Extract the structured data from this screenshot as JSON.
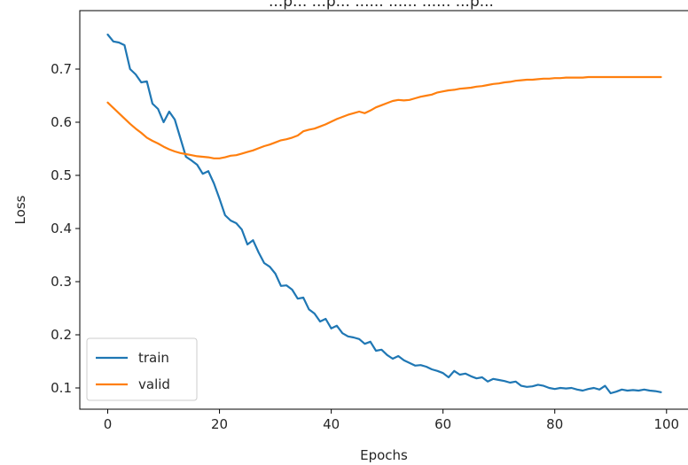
{
  "chart_data": {
    "type": "line",
    "title": "...p... ...p... ...... ...... ...... ...p...",
    "xlabel": "Epochs",
    "ylabel": "Loss",
    "xlim": [
      -5,
      104
    ],
    "ylim": [
      0.06,
      0.81
    ],
    "xticks": [
      0,
      20,
      40,
      60,
      80,
      100
    ],
    "yticks": [
      0.1,
      0.2,
      0.3,
      0.4,
      0.5,
      0.6,
      0.7
    ],
    "grid": false,
    "legend_position": "lower-left",
    "series": [
      {
        "name": "train",
        "color": "#1f77b4",
        "x": [
          0,
          1,
          2,
          3,
          4,
          5,
          6,
          7,
          8,
          9,
          10,
          11,
          12,
          13,
          14,
          15,
          16,
          17,
          18,
          19,
          20,
          21,
          22,
          23,
          24,
          25,
          26,
          27,
          28,
          29,
          30,
          31,
          32,
          33,
          34,
          35,
          36,
          37,
          38,
          39,
          40,
          41,
          42,
          43,
          44,
          45,
          46,
          47,
          48,
          49,
          50,
          51,
          52,
          53,
          54,
          55,
          56,
          57,
          58,
          59,
          60,
          61,
          62,
          63,
          64,
          65,
          66,
          67,
          68,
          69,
          70,
          71,
          72,
          73,
          74,
          75,
          76,
          77,
          78,
          79,
          80,
          81,
          82,
          83,
          84,
          85,
          86,
          87,
          88,
          89,
          90,
          91,
          92,
          93,
          94,
          95,
          96,
          97,
          98,
          99
        ],
        "y": [
          0.765,
          0.752,
          0.75,
          0.745,
          0.7,
          0.69,
          0.675,
          0.677,
          0.635,
          0.625,
          0.6,
          0.62,
          0.605,
          0.57,
          0.535,
          0.528,
          0.52,
          0.503,
          0.508,
          0.485,
          0.456,
          0.425,
          0.415,
          0.41,
          0.398,
          0.37,
          0.378,
          0.355,
          0.335,
          0.328,
          0.315,
          0.292,
          0.293,
          0.285,
          0.268,
          0.27,
          0.248,
          0.24,
          0.225,
          0.23,
          0.212,
          0.217,
          0.203,
          0.197,
          0.195,
          0.192,
          0.183,
          0.187,
          0.17,
          0.172,
          0.162,
          0.155,
          0.16,
          0.152,
          0.147,
          0.142,
          0.143,
          0.14,
          0.135,
          0.132,
          0.128,
          0.12,
          0.132,
          0.125,
          0.127,
          0.122,
          0.118,
          0.12,
          0.112,
          0.117,
          0.115,
          0.113,
          0.11,
          0.112,
          0.104,
          0.102,
          0.103,
          0.106,
          0.104,
          0.1,
          0.098,
          0.1,
          0.099,
          0.1,
          0.097,
          0.095,
          0.098,
          0.1,
          0.097,
          0.104,
          0.09,
          0.093,
          0.097,
          0.095,
          0.096,
          0.095,
          0.097,
          0.095,
          0.094,
          0.092
        ]
      },
      {
        "name": "valid",
        "color": "#ff7f0e",
        "x": [
          0,
          1,
          2,
          3,
          4,
          5,
          6,
          7,
          8,
          9,
          10,
          11,
          12,
          13,
          14,
          15,
          16,
          17,
          18,
          19,
          20,
          21,
          22,
          23,
          24,
          25,
          26,
          27,
          28,
          29,
          30,
          31,
          32,
          33,
          34,
          35,
          36,
          37,
          38,
          39,
          40,
          41,
          42,
          43,
          44,
          45,
          46,
          47,
          48,
          49,
          50,
          51,
          52,
          53,
          54,
          55,
          56,
          57,
          58,
          59,
          60,
          61,
          62,
          63,
          64,
          65,
          66,
          67,
          68,
          69,
          70,
          71,
          72,
          73,
          74,
          75,
          76,
          77,
          78,
          79,
          80,
          81,
          82,
          83,
          84,
          85,
          86,
          87,
          88,
          89,
          90,
          91,
          92,
          93,
          94,
          95,
          96,
          97,
          98,
          99
        ],
        "y": [
          0.637,
          0.627,
          0.617,
          0.607,
          0.597,
          0.588,
          0.58,
          0.571,
          0.565,
          0.56,
          0.554,
          0.549,
          0.545,
          0.542,
          0.54,
          0.538,
          0.536,
          0.535,
          0.534,
          0.532,
          0.532,
          0.534,
          0.537,
          0.538,
          0.541,
          0.544,
          0.547,
          0.551,
          0.555,
          0.558,
          0.562,
          0.566,
          0.568,
          0.571,
          0.575,
          0.583,
          0.586,
          0.588,
          0.592,
          0.596,
          0.601,
          0.606,
          0.61,
          0.614,
          0.617,
          0.62,
          0.617,
          0.622,
          0.628,
          0.632,
          0.636,
          0.64,
          0.642,
          0.641,
          0.642,
          0.645,
          0.648,
          0.65,
          0.652,
          0.656,
          0.658,
          0.66,
          0.661,
          0.663,
          0.664,
          0.665,
          0.667,
          0.668,
          0.67,
          0.672,
          0.673,
          0.675,
          0.676,
          0.678,
          0.679,
          0.68,
          0.68,
          0.681,
          0.682,
          0.682,
          0.683,
          0.683,
          0.684,
          0.684,
          0.684,
          0.684,
          0.685,
          0.685,
          0.685,
          0.685,
          0.685,
          0.685,
          0.685,
          0.685,
          0.685,
          0.685,
          0.685,
          0.685,
          0.685,
          0.685
        ]
      }
    ]
  }
}
